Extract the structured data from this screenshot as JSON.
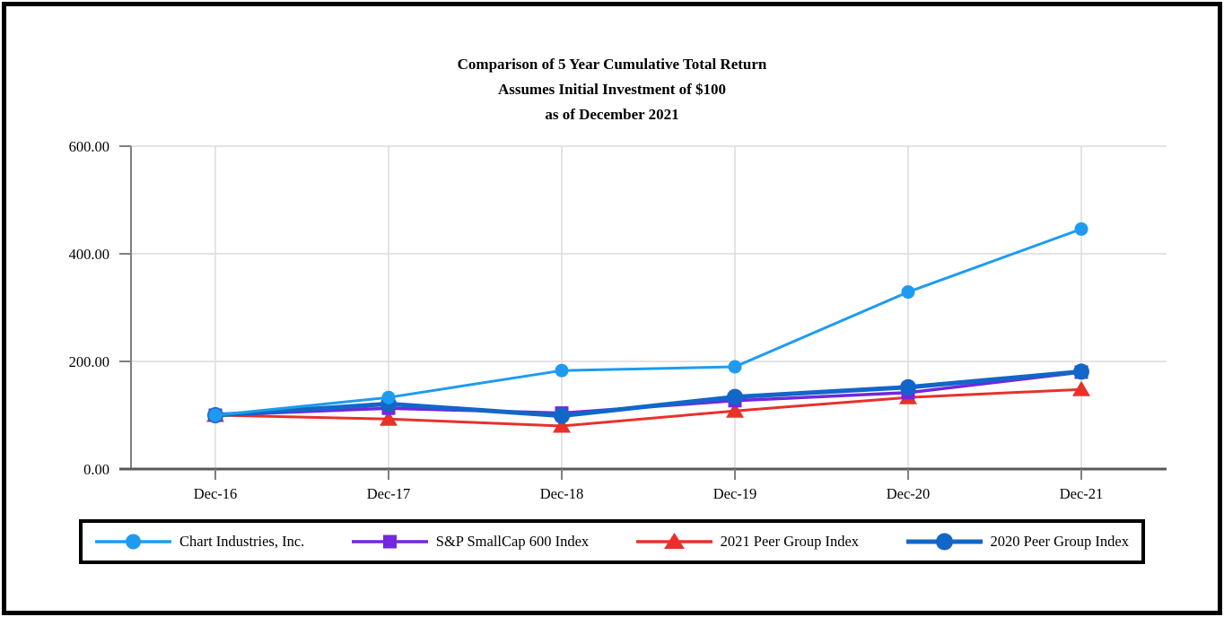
{
  "page": {
    "background": "#FFFFFF",
    "border_color": "#000000"
  },
  "chart_data": {
    "type": "line",
    "title": "Comparison of 5 Year Cumulative Total Return",
    "subtitle": "Assumes Initial Investment of $100",
    "date_line": "as of December 2021",
    "categories": [
      "Dec-16",
      "Dec-17",
      "Dec-18",
      "Dec-19",
      "Dec-20",
      "Dec-21"
    ],
    "series": [
      {
        "name": "Chart Industries, Inc.",
        "color": "#1E9BF0",
        "marker": "circle",
        "values": [
          100,
          133,
          183,
          190,
          329,
          446
        ]
      },
      {
        "name": "S&P SmallCap 600 Index",
        "color": "#7227E0",
        "marker": "square",
        "values": [
          100,
          113,
          104,
          127,
          142,
          180
        ]
      },
      {
        "name": "2021 Peer Group Index",
        "color": "#E8312D",
        "marker": "triangle",
        "values": [
          100,
          93,
          80,
          108,
          133,
          148
        ]
      },
      {
        "name": "2020 Peer Group Index",
        "color": "#1266C8",
        "marker": "circle",
        "values": [
          100,
          121,
          99,
          134,
          152,
          181
        ]
      }
    ],
    "ylim": [
      0,
      600
    ],
    "yticks": [
      {
        "value": 0,
        "label": "0.00"
      },
      {
        "value": 200,
        "label": "200.00"
      },
      {
        "value": 400,
        "label": "400.00"
      },
      {
        "value": 600,
        "label": "600.00"
      }
    ],
    "grid": true,
    "legend_position": "bottom",
    "gridline_color": "#DCDCDC",
    "y_axis_color": "#7F7F7F",
    "x_axis_color": "#595959",
    "text_color": "#000000"
  }
}
